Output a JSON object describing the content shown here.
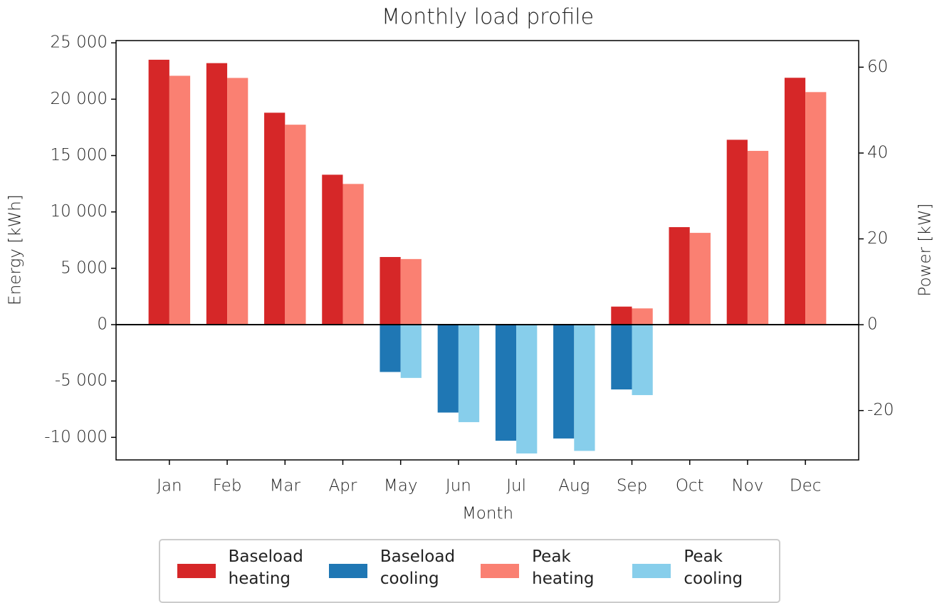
{
  "chart_data": {
    "type": "bar",
    "title": "Monthly load profile",
    "xlabel": "Month",
    "ylabel": "Energy [kWh]",
    "y2label": "Power [kW]",
    "categories": [
      "Jan",
      "Feb",
      "Mar",
      "Apr",
      "May",
      "Jun",
      "Jul",
      "Aug",
      "Sep",
      "Oct",
      "Nov",
      "Dec"
    ],
    "series": [
      {
        "name": "Baseload heating",
        "color": "#d62728",
        "axis": "y",
        "values": [
          23500,
          23200,
          18800,
          13300,
          6000,
          0,
          0,
          0,
          1600,
          8650,
          16400,
          21900
        ]
      },
      {
        "name": "Baseload cooling",
        "color": "#1f77b4",
        "axis": "y",
        "values": [
          0,
          0,
          0,
          0,
          -4200,
          -7800,
          -10300,
          -10100,
          -5750,
          0,
          0,
          0
        ]
      },
      {
        "name": "Peak heating",
        "color": "#fa8072",
        "axis": "y2",
        "values": [
          58.0,
          57.5,
          46.6,
          32.8,
          15.3,
          0,
          0,
          0,
          3.8,
          21.4,
          40.5,
          54.2
        ]
      },
      {
        "name": "Peak cooling",
        "color": "#87ceeb",
        "axis": "y2",
        "values": [
          0,
          0,
          0,
          0,
          -12.4,
          -22.7,
          -30.0,
          -29.4,
          -16.4,
          0,
          0,
          0
        ]
      }
    ],
    "ylim": [
      -12000,
      25200
    ],
    "yticks": [
      {
        "value": -10000,
        "label": "-10 000"
      },
      {
        "value": -5000,
        "label": "-5 000"
      },
      0,
      {
        "value": 5000,
        "label": "5 000"
      },
      {
        "value": 10000,
        "label": "10 000"
      },
      {
        "value": 15000,
        "label": "15 000"
      },
      {
        "value": 20000,
        "label": "20 000"
      },
      {
        "value": 25000,
        "label": "25 000"
      }
    ],
    "y2lim": [
      -31.5,
      66.2
    ],
    "y2ticks": [
      -20,
      0,
      20,
      40,
      60
    ],
    "legend": "bottom"
  }
}
